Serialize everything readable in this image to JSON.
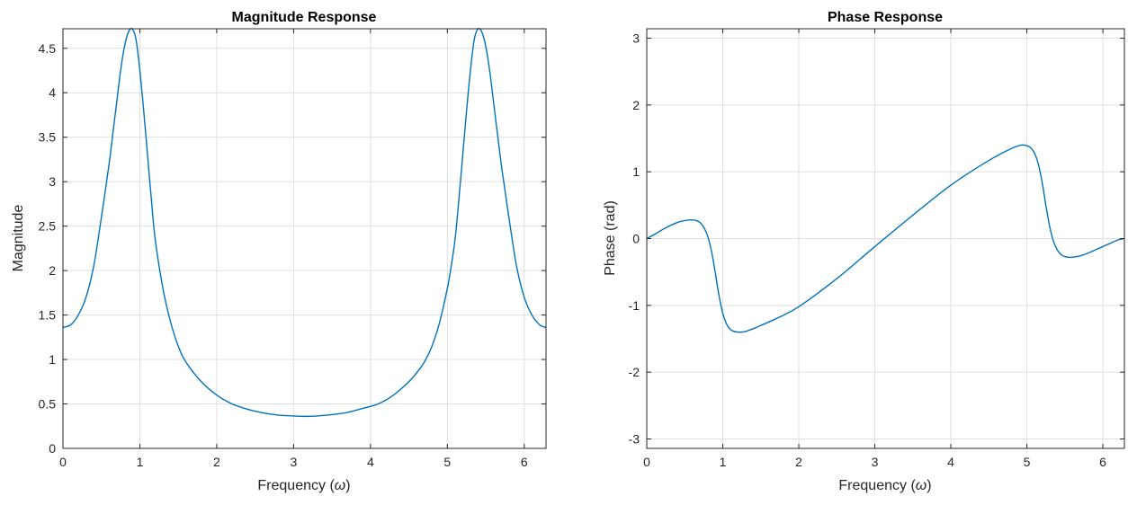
{
  "chart_data": [
    {
      "type": "line",
      "title": "Magnitude Response",
      "xlabel_main": "Frequency (",
      "xlabel_symbol": "ω",
      "xlabel_end": ")",
      "ylabel": "Magnitude",
      "xlim": [
        0,
        6.2832
      ],
      "ylim": [
        0,
        4.72
      ],
      "xticks": [
        0,
        1,
        2,
        3,
        4,
        5,
        6
      ],
      "xtick_labels": [
        "0",
        "1",
        "2",
        "3",
        "4",
        "5",
        "6"
      ],
      "yticks": [
        0,
        0.5,
        1,
        1.5,
        2,
        2.5,
        3,
        3.5,
        4,
        4.5
      ],
      "ytick_labels": [
        "0",
        "0.5",
        "1",
        "1.5",
        "2",
        "2.5",
        "3",
        "3.5",
        "4",
        "4.5"
      ],
      "grid": true,
      "series": [
        {
          "color": "#0072bd",
          "x": [
            0,
            0.1,
            0.2,
            0.3,
            0.4,
            0.5,
            0.6,
            0.65,
            0.7,
            0.75,
            0.8,
            0.85,
            0.9,
            0.95,
            1.0,
            1.05,
            1.1,
            1.15,
            1.2,
            1.3,
            1.4,
            1.5,
            1.6,
            1.8,
            2.0,
            2.2,
            2.4,
            2.6,
            2.8,
            3.0,
            3.1416,
            3.3,
            3.5,
            3.7,
            3.9,
            4.1,
            4.3,
            4.5,
            4.6,
            4.7,
            4.8,
            4.9,
            5.0,
            5.05,
            5.1,
            5.15,
            5.2,
            5.25,
            5.3,
            5.35,
            5.4,
            5.45,
            5.5,
            5.55,
            5.6,
            5.65,
            5.7,
            5.75,
            5.8,
            5.9,
            6.0,
            6.1,
            6.2,
            6.2832
          ],
          "y": [
            1.36,
            1.39,
            1.5,
            1.7,
            2.05,
            2.6,
            3.2,
            3.55,
            3.9,
            4.25,
            4.52,
            4.68,
            4.72,
            4.6,
            4.25,
            3.8,
            3.3,
            2.8,
            2.35,
            1.8,
            1.42,
            1.15,
            0.97,
            0.75,
            0.6,
            0.5,
            0.44,
            0.4,
            0.375,
            0.365,
            0.36,
            0.365,
            0.38,
            0.405,
            0.45,
            0.5,
            0.6,
            0.75,
            0.85,
            0.97,
            1.15,
            1.42,
            1.8,
            2.05,
            2.35,
            2.8,
            3.3,
            3.8,
            4.25,
            4.6,
            4.72,
            4.68,
            4.52,
            4.25,
            3.9,
            3.55,
            3.2,
            2.9,
            2.6,
            2.05,
            1.7,
            1.5,
            1.39,
            1.36
          ]
        }
      ]
    },
    {
      "type": "line",
      "title": "Phase Response",
      "xlabel_main": "Frequency (",
      "xlabel_symbol": "ω",
      "xlabel_end": ")",
      "ylabel": "Phase (rad)",
      "xlim": [
        0,
        6.2832
      ],
      "ylim": [
        -3.1416,
        3.1416
      ],
      "xticks": [
        0,
        1,
        2,
        3,
        4,
        5,
        6
      ],
      "xtick_labels": [
        "0",
        "1",
        "2",
        "3",
        "4",
        "5",
        "6"
      ],
      "yticks": [
        -3,
        -2,
        -1,
        0,
        1,
        2,
        3
      ],
      "ytick_labels": [
        "-3",
        "-2",
        "-1",
        "0",
        "1",
        "2",
        "3"
      ],
      "grid": true,
      "series": [
        {
          "color": "#0072bd",
          "x": [
            0,
            0.1,
            0.2,
            0.3,
            0.4,
            0.5,
            0.6,
            0.65,
            0.7,
            0.75,
            0.8,
            0.85,
            0.9,
            0.95,
            1.0,
            1.05,
            1.1,
            1.15,
            1.2,
            1.25,
            1.3,
            1.35,
            1.4,
            1.5,
            1.7,
            2.0,
            2.5,
            3.0,
            3.5,
            4.0,
            4.5,
            4.8,
            4.93,
            5.0,
            5.05,
            5.1,
            5.15,
            5.2,
            5.25,
            5.3,
            5.35,
            5.4,
            5.45,
            5.5,
            5.55,
            5.6,
            5.65,
            5.7,
            5.8,
            5.9,
            6.0,
            6.1,
            6.2,
            6.2832
          ],
          "y": [
            0,
            0.06,
            0.13,
            0.19,
            0.24,
            0.27,
            0.28,
            0.27,
            0.24,
            0.17,
            0.04,
            -0.18,
            -0.5,
            -0.85,
            -1.12,
            -1.28,
            -1.36,
            -1.39,
            -1.4,
            -1.4,
            -1.39,
            -1.37,
            -1.35,
            -1.3,
            -1.2,
            -1.02,
            -0.6,
            -0.12,
            0.35,
            0.8,
            1.17,
            1.35,
            1.4,
            1.39,
            1.36,
            1.28,
            1.12,
            0.85,
            0.5,
            0.18,
            -0.04,
            -0.17,
            -0.24,
            -0.27,
            -0.28,
            -0.28,
            -0.27,
            -0.26,
            -0.22,
            -0.17,
            -0.12,
            -0.07,
            -0.02,
            0
          ]
        }
      ]
    }
  ]
}
